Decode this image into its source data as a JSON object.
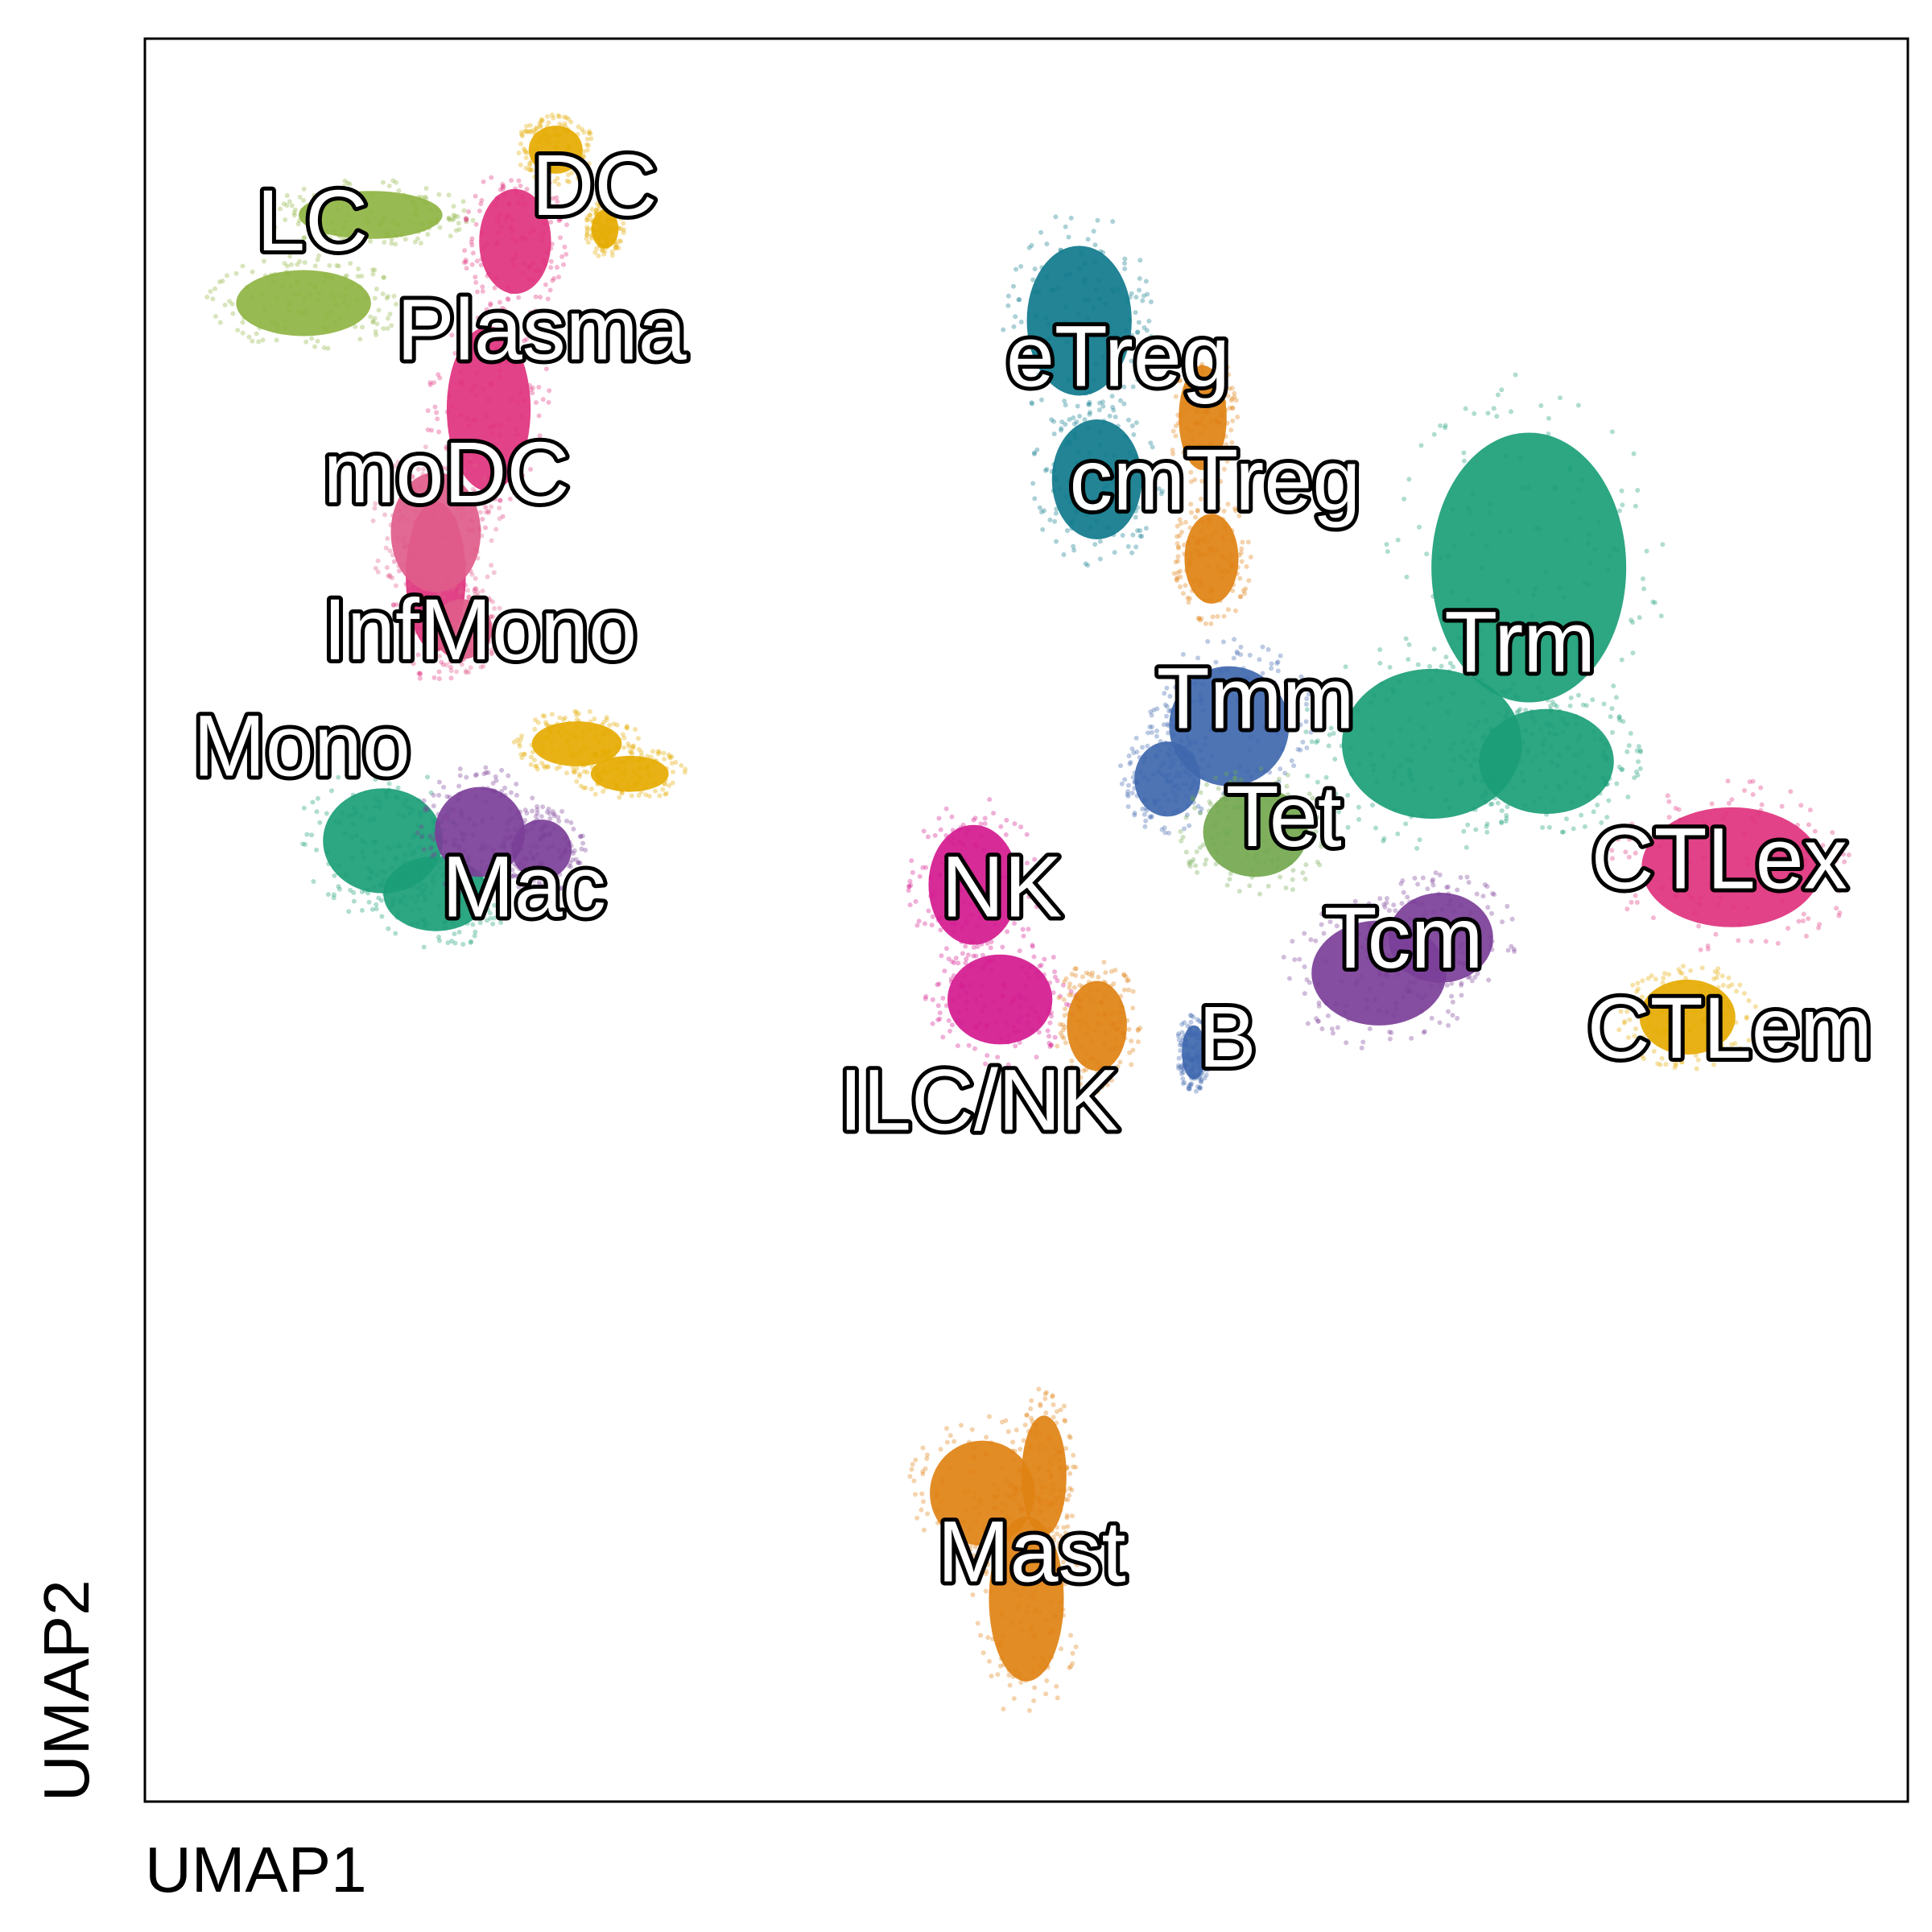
{
  "chart_data": {
    "type": "scatter",
    "title": "",
    "xlabel": "UMAP1",
    "ylabel": "UMAP2",
    "xlim": [
      0,
      100
    ],
    "ylim": [
      0,
      100
    ],
    "grid": false,
    "legend": "on-data labels",
    "clusters": [
      {
        "name": "DC",
        "color": "#e6ab02",
        "label": [
          25.5,
          91.3
        ],
        "blobs": [
          [
            23.3,
            93.7,
            1.8,
            1.6
          ],
          [
            26.1,
            89.2,
            0.9,
            1.3
          ]
        ]
      },
      {
        "name": "LC",
        "color": "#8fb443",
        "label": [
          9.5,
          89.3
        ],
        "blobs": [
          [
            12.8,
            90.0,
            4.8,
            1.6
          ],
          [
            9.0,
            85.0,
            4.5,
            2.2
          ]
        ]
      },
      {
        "name": "Plasma",
        "color": "#e0327d",
        "label": [
          22.5,
          83.1
        ],
        "blobs": [
          [
            21.0,
            88.5,
            2.4,
            3.5
          ],
          [
            19.5,
            79.0,
            2.8,
            5.5
          ],
          [
            16.5,
            69.5,
            2.0,
            5.0
          ]
        ]
      },
      {
        "name": "moDC",
        "color": "#e05c8a",
        "label": [
          17.1,
          75.0
        ],
        "blobs": [
          [
            16.5,
            72.0,
            3.0,
            4.0
          ],
          [
            18.0,
            66.5,
            2.0,
            2.0
          ]
        ]
      },
      {
        "name": "InfMono",
        "color": "#e6ab02",
        "label": [
          19.0,
          66.1
        ],
        "blobs": [
          [
            27.5,
            58.3,
            2.6,
            1.2
          ],
          [
            24.5,
            60.0,
            3.0,
            1.5
          ]
        ]
      },
      {
        "name": "Mono",
        "color": "#1b9e77",
        "label": [
          8.9,
          59.5
        ],
        "blobs": [
          [
            13.5,
            54.5,
            4.0,
            3.5
          ],
          [
            16.5,
            51.5,
            3.5,
            2.5
          ]
        ]
      },
      {
        "name": "Mac",
        "color": "#7b3f98",
        "label": [
          21.5,
          51.5
        ],
        "blobs": [
          [
            19.0,
            55.0,
            3.0,
            3.0
          ],
          [
            22.5,
            54.0,
            2.0,
            2.0
          ]
        ]
      },
      {
        "name": "eTreg",
        "color": "#0f7a8c",
        "label": [
          55.2,
          81.6
        ],
        "blobs": [
          [
            53.0,
            84.0,
            3.5,
            5.0
          ],
          [
            54.0,
            75.0,
            3.0,
            4.0
          ]
        ]
      },
      {
        "name": "cmTreg",
        "color": "#e08214",
        "label": [
          60.7,
          74.6
        ],
        "blobs": [
          [
            60.0,
            78.5,
            1.6,
            3.5
          ],
          [
            60.5,
            70.5,
            1.8,
            3.0
          ]
        ]
      },
      {
        "name": "Trm",
        "color": "#1b9e77",
        "label": [
          78.0,
          65.4
        ],
        "blobs": [
          [
            78.5,
            70.0,
            6.5,
            9.0
          ],
          [
            73.0,
            60.0,
            6.0,
            5.0
          ],
          [
            79.5,
            59.0,
            4.5,
            3.5
          ]
        ]
      },
      {
        "name": "Tmm",
        "color": "#3f68ae",
        "label": [
          63.0,
          62.2
        ],
        "blobs": [
          [
            61.5,
            61.0,
            4.0,
            4.0
          ],
          [
            58.0,
            58.0,
            2.2,
            2.5
          ]
        ]
      },
      {
        "name": "Tet",
        "color": "#74a84f",
        "label": [
          64.6,
          55.5
        ],
        "blobs": [
          [
            63.0,
            55.0,
            3.5,
            3.0
          ]
        ]
      },
      {
        "name": "Tcm",
        "color": "#7b3f98",
        "label": [
          71.4,
          48.6
        ],
        "blobs": [
          [
            70.0,
            47.0,
            4.5,
            3.5
          ],
          [
            73.5,
            49.0,
            3.5,
            3.0
          ]
        ]
      },
      {
        "name": "CTLex",
        "color": "#e0327d",
        "label": [
          89.3,
          53.1
        ],
        "blobs": [
          [
            90.0,
            53.0,
            6.0,
            4.0
          ]
        ]
      },
      {
        "name": "CTLem",
        "color": "#e6ab02",
        "label": [
          89.9,
          43.5
        ],
        "blobs": [
          [
            87.5,
            44.5,
            3.2,
            2.5
          ]
        ]
      },
      {
        "name": "NK",
        "color": "#d41a8f",
        "label": [
          48.6,
          51.5
        ],
        "blobs": [
          [
            47.0,
            52.0,
            3.0,
            4.0
          ],
          [
            48.5,
            45.5,
            3.5,
            3.0
          ]
        ]
      },
      {
        "name": "ILC/NK",
        "color": "#e08214",
        "label": [
          47.3,
          39.4
        ],
        "blobs": [
          [
            54.0,
            44.0,
            2.0,
            3.0
          ]
        ]
      },
      {
        "name": "B",
        "color": "#3f68ae",
        "label": [
          61.4,
          43.0
        ],
        "blobs": [
          [
            59.5,
            42.5,
            0.8,
            1.8
          ]
        ]
      },
      {
        "name": "Mast",
        "color": "#e08214",
        "label": [
          50.3,
          13.8
        ],
        "blobs": [
          [
            47.5,
            17.5,
            3.5,
            3.5
          ],
          [
            50.0,
            11.5,
            2.5,
            5.5
          ],
          [
            51.0,
            18.5,
            1.5,
            4.0
          ]
        ]
      }
    ]
  }
}
